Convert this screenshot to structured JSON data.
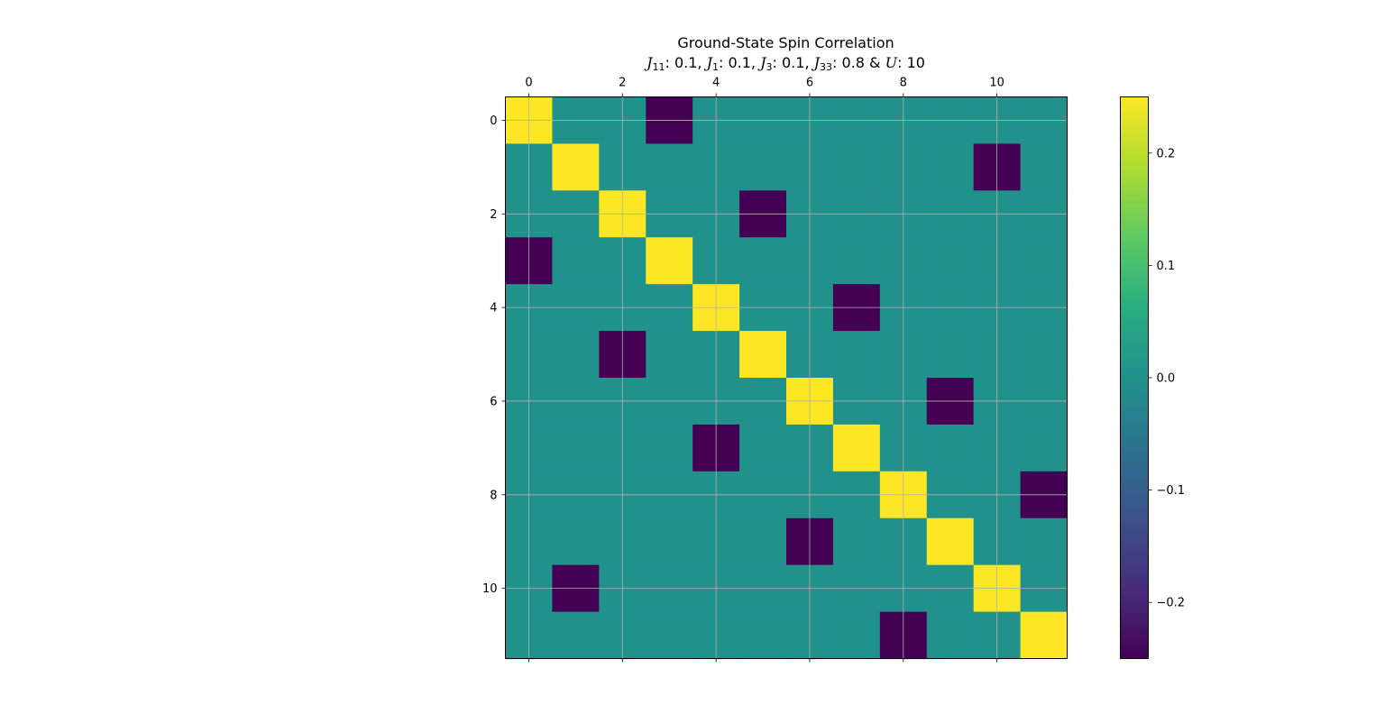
{
  "chart_data": {
    "type": "heatmap",
    "title": "Ground-State Spin Correlation",
    "subtitle_parts": [
      {
        "sym": "J",
        "sub": "11",
        "val": ": 0.1, "
      },
      {
        "sym": "J",
        "sub": "1",
        "val": ": 0.1, "
      },
      {
        "sym": "J",
        "sub": "3",
        "val": ": 0.1, "
      },
      {
        "sym": "J",
        "sub": "33",
        "val": ": 0.8 & "
      },
      {
        "sym": "U",
        "sub": "",
        "val": ": 10"
      }
    ],
    "size": 12,
    "diagonal_value": 0.25,
    "off_value": 0.0,
    "anti_value": -0.25,
    "anti_pairs": [
      [
        0,
        3
      ],
      [
        1,
        10
      ],
      [
        2,
        5
      ],
      [
        4,
        7
      ],
      [
        6,
        9
      ],
      [
        8,
        11
      ]
    ],
    "x_ticks": [
      0,
      2,
      4,
      6,
      8,
      10
    ],
    "y_ticks": [
      0,
      2,
      4,
      6,
      8,
      10
    ],
    "x_axis_position": "top",
    "grid": true,
    "colormap": "viridis",
    "colorbar": {
      "range": [
        -0.25,
        0.25
      ],
      "ticks": [
        -0.2,
        -0.1,
        0.0,
        0.1,
        0.2
      ],
      "tick_labels": [
        "−0.2",
        "−0.1",
        "0.0",
        "0.1",
        "0.2"
      ]
    }
  }
}
